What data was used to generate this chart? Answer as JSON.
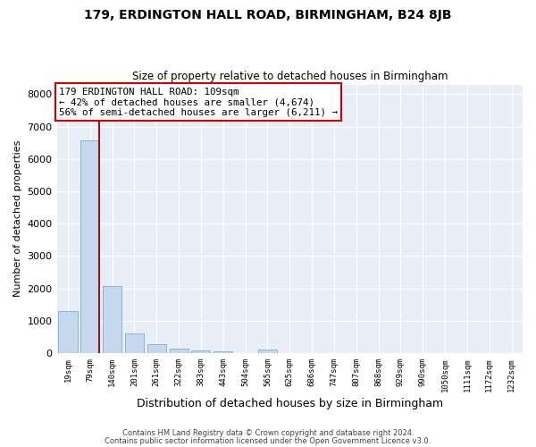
{
  "title": "179, ERDINGTON HALL ROAD, BIRMINGHAM, B24 8JB",
  "subtitle": "Size of property relative to detached houses in Birmingham",
  "xlabel": "Distribution of detached houses by size in Birmingham",
  "ylabel": "Number of detached properties",
  "bar_labels": [
    "19sqm",
    "79sqm",
    "140sqm",
    "201sqm",
    "261sqm",
    "322sqm",
    "383sqm",
    "443sqm",
    "504sqm",
    "565sqm",
    "625sqm",
    "686sqm",
    "747sqm",
    "807sqm",
    "868sqm",
    "929sqm",
    "990sqm",
    "1050sqm",
    "1111sqm",
    "1172sqm",
    "1232sqm"
  ],
  "bar_values": [
    1300,
    6580,
    2080,
    610,
    290,
    140,
    85,
    60,
    0,
    110,
    0,
    0,
    0,
    0,
    0,
    0,
    0,
    0,
    0,
    0,
    0
  ],
  "bar_color": "#C5D8EE",
  "bar_edgecolor": "#8AB4D4",
  "vline_color": "#8B1A1A",
  "vline_x": 1.42,
  "annotation_line1": "179 ERDINGTON HALL ROAD: 109sqm",
  "annotation_line2": "← 42% of detached houses are smaller (4,674)",
  "annotation_line3": "56% of semi-detached houses are larger (6,211) →",
  "box_facecolor": "#FFFFFF",
  "box_edgecolor": "#CC0000",
  "ylim": [
    0,
    8300
  ],
  "yticks": [
    0,
    1000,
    2000,
    3000,
    4000,
    5000,
    6000,
    7000,
    8000
  ],
  "footer1": "Contains HM Land Registry data © Crown copyright and database right 2024.",
  "footer2": "Contains public sector information licensed under the Open Government Licence v3.0.",
  "bg_color": "#FFFFFF",
  "plot_bg_color": "#E8EEF8"
}
